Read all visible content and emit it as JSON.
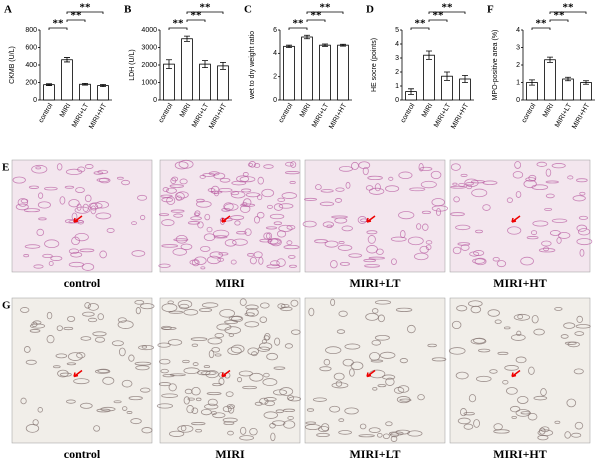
{
  "chart_data": [
    {
      "type": "bar",
      "panel": "A",
      "y_label": "CKMB (U/L)",
      "categories": [
        "control",
        "MIRI",
        "MIRI+LT",
        "MIRI+HT"
      ],
      "values": [
        175,
        460,
        180,
        165
      ],
      "errors": [
        10,
        25,
        10,
        12
      ],
      "ylim": [
        0,
        800
      ],
      "yticks": [
        0,
        200,
        400,
        600,
        800
      ],
      "color": "#ffffff",
      "annotations": [
        "**",
        "**",
        "**"
      ]
    },
    {
      "type": "bar",
      "panel": "B",
      "y_label": "LDH (U/L)",
      "categories": [
        "control",
        "MIRI",
        "MIRI+LT",
        "MIRI+HT"
      ],
      "values": [
        2050,
        3500,
        2050,
        1950
      ],
      "errors": [
        250,
        150,
        200,
        200
      ],
      "ylim": [
        0,
        4000
      ],
      "yticks": [
        0,
        1000,
        2000,
        3000,
        4000
      ],
      "color": "#ffffff",
      "annotations": [
        "**",
        "**",
        "**"
      ]
    },
    {
      "type": "bar",
      "panel": "C",
      "y_label": "wet to dry weight ratio",
      "categories": [
        "control",
        "MIRI",
        "MIRI+LT",
        "MIRI+HT"
      ],
      "values": [
        4.6,
        5.4,
        4.7,
        4.7
      ],
      "errors": [
        0.1,
        0.15,
        0.1,
        0.08
      ],
      "ylim": [
        0,
        6
      ],
      "yticks": [
        0,
        2,
        4,
        6
      ],
      "color": "#ffffff",
      "annotations": [
        "**",
        "**",
        "**"
      ]
    },
    {
      "type": "bar",
      "panel": "D",
      "y_label": "HE socre (points)",
      "categories": [
        "control",
        "MIRI",
        "MIRI+LT",
        "MIRI+HT"
      ],
      "values": [
        0.6,
        3.2,
        1.7,
        1.5
      ],
      "errors": [
        0.2,
        0.3,
        0.3,
        0.25
      ],
      "ylim": [
        0,
        5
      ],
      "yticks": [
        0,
        1,
        2,
        3,
        4,
        5
      ],
      "color": "#ffffff",
      "annotations": [
        "**",
        "**",
        "**"
      ]
    },
    {
      "type": "bar",
      "panel": "F",
      "y_label": "MPO-positive area (%)",
      "categories": [
        "control",
        "MIRI",
        "MIRI+LT",
        "MIRI+HT"
      ],
      "values": [
        1.0,
        2.3,
        1.2,
        1.0
      ],
      "errors": [
        0.15,
        0.15,
        0.1,
        0.1
      ],
      "ylim": [
        0,
        4
      ],
      "yticks": [
        0,
        1,
        2,
        3,
        4
      ],
      "color": "#ffffff",
      "annotations": [
        "**",
        "**",
        "**"
      ]
    }
  ],
  "figure": {
    "image_rows": [
      {
        "panel": "E",
        "captions": [
          "control",
          "MIRI",
          "MIRI+LT",
          "MIRI+HT"
        ]
      },
      {
        "panel": "G",
        "captions": [
          "control",
          "MIRI",
          "MIRI+LT",
          "MIRI+HT"
        ]
      }
    ]
  }
}
